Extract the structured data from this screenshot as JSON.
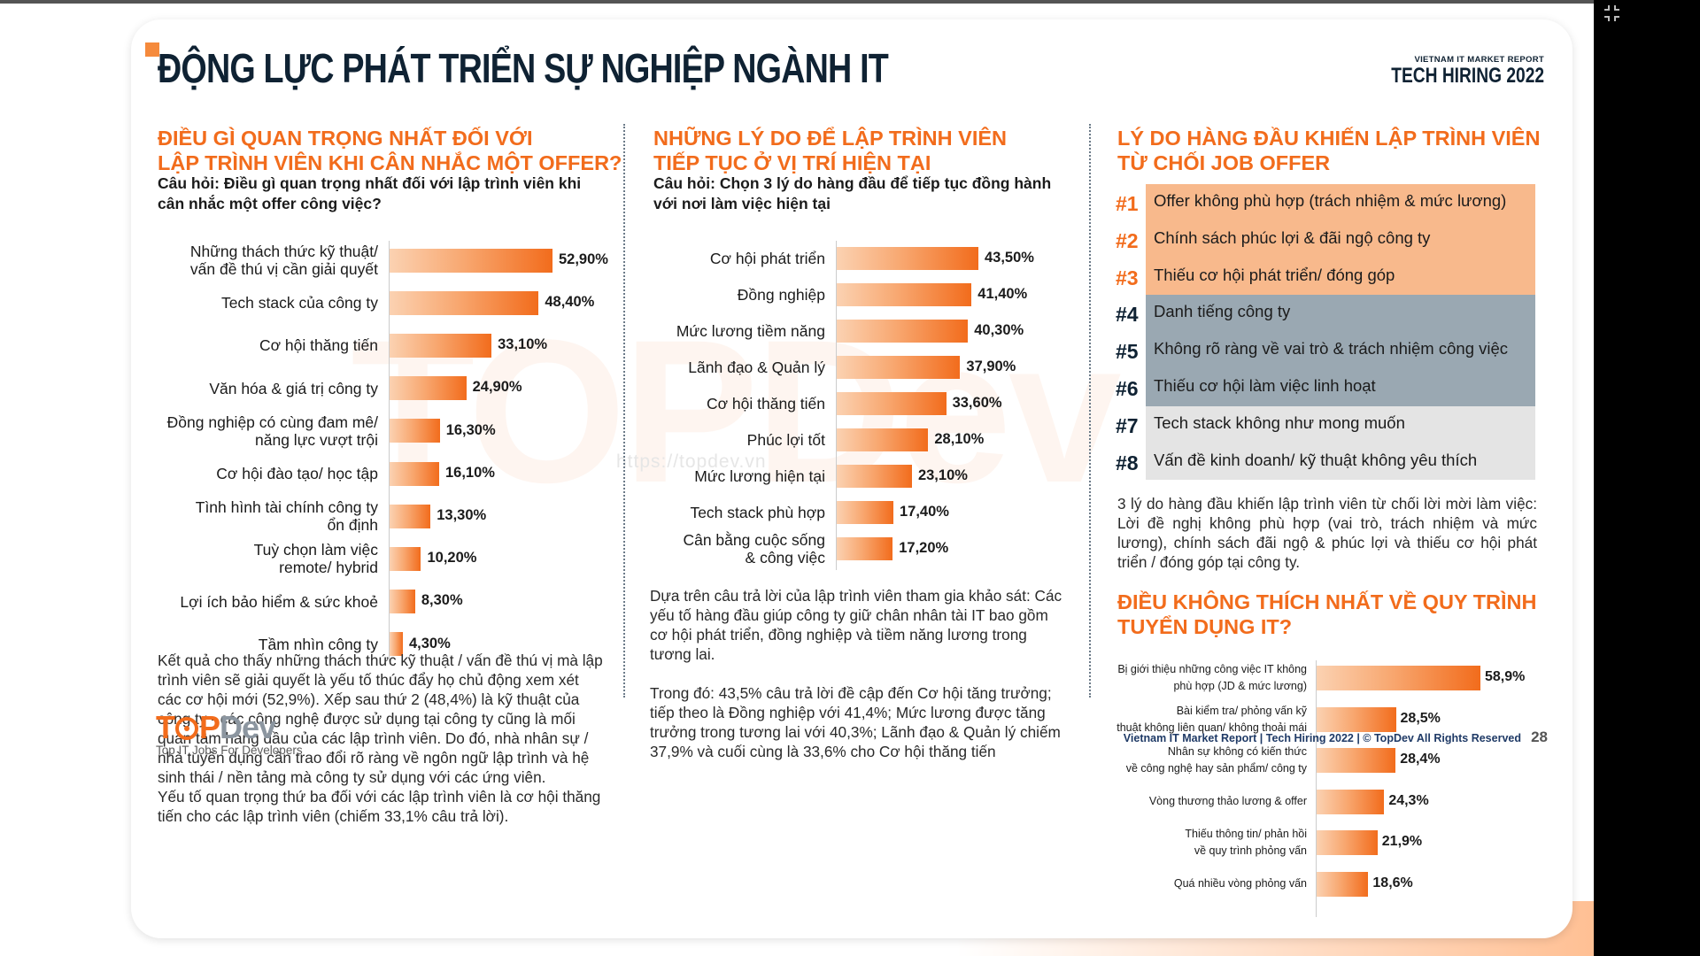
{
  "header": {
    "title": "ĐỘNG LỰC PHÁT TRIỂN SỰ NGHIỆP NGÀNH IT",
    "brand_sub": "VIETNAM IT MARKET REPORT",
    "brand_main": "TECH HIRING 2022"
  },
  "section1": {
    "title_line1": "ĐIỀU GÌ QUAN TRỌNG NHẤT ĐỐI VỚI",
    "title_line2": "LẬP TRÌNH VIÊN KHI CÂN NHẮC MỘT OFFER?",
    "question": "Câu hỏi: Điều gì quan trọng nhất đối với lập trình viên khi cân nhắc một offer công việc?",
    "paragraph1": "Kết quả cho thấy những thách thức kỹ thuật / vấn đề thú vị mà lập trình viên sẽ giải quyết là yếu tố thúc đẩy họ chủ động xem xét các cơ hội mới (52,9%). Xếp sau thứ 2 (48,4%) là kỹ thuật của công ty - các công nghệ được sử dụng tại công ty cũng là mối quan tâm hàng đầu của các lập trình viên. Do đó, nhà nhân sự / nhà tuyển dụng cần trao đổi rõ ràng về ngôn ngữ lập trình và hệ sinh thái / nền tảng mà công ty sử dụng với các ứng viên.",
    "paragraph2": "Yếu tố quan trọng thứ ba đối với các lập trình viên là cơ hội thăng tiến cho các lập trình viên (chiếm 33,1% câu trả lời)."
  },
  "section2": {
    "title_line1": "NHỮNG LÝ DO ĐỂ LẬP TRÌNH VIÊN",
    "title_line2": "TIẾP TỤC Ở VỊ TRÍ HIỆN TẠI",
    "question": "Câu hỏi: Chọn 3 lý do hàng đầu để tiếp tục đồng hành với nơi làm việc hiện tại",
    "paragraph1": "Dựa trên câu trả lời của lập trình viên tham gia khảo sát: Các yếu tố hàng đầu giúp công ty giữ chân nhân tài IT bao gồm cơ hội phát triển, đồng nghiệp và tiềm năng lương trong tương lai.",
    "paragraph2": "Trong đó: 43,5% câu trả lời đề cập đến Cơ hội tăng trưởng; tiếp theo là Đồng nghiệp với 41,4%; Mức lương được tăng trưởng trong tương lai với 40,3%; Lãnh đạo & Quản lý chiếm 37,9% và cuối cùng là 33,6% cho Cơ hội thăng tiến"
  },
  "section3": {
    "title_line1": "LÝ DO HÀNG ĐẦU KHIẾN LẬP TRÌNH VIÊN",
    "title_line2": "TỪ CHỐI JOB OFFER",
    "ranks": [
      {
        "num": "#1",
        "text": "Offer không phù hợp (trách nhiệm & mức lương)"
      },
      {
        "num": "#2",
        "text": "Chính sách phúc lợi & đãi ngộ công ty"
      },
      {
        "num": "#3",
        "text": "Thiếu cơ hội phát triển/ đóng góp"
      },
      {
        "num": "#4",
        "text": "Danh tiếng công ty"
      },
      {
        "num": "#5",
        "text": "Không rõ ràng về vai trò & trách nhiệm công việc"
      },
      {
        "num": "#6",
        "text": "Thiếu cơ hội làm việc linh hoạt"
      },
      {
        "num": "#7",
        "text": "Tech stack không như mong muốn"
      },
      {
        "num": "#8",
        "text": "Vấn đề kinh doanh/ kỹ thuật không yêu thích"
      }
    ],
    "rank_colors": {
      "top": "#f26c1c",
      "mid": "#0f2233",
      "low": "#0f2233"
    },
    "paragraph": "3 lý do hàng đầu khiến lập trình viên từ chối lời mời làm việc: Lời đề nghị không phù hợp (vai trò, trách nhiệm và mức lương), chính sách đãi ngộ & phúc lợi và thiếu cơ hội phát triển / đóng góp tại công ty."
  },
  "section4": {
    "title_line1": "ĐIỀU KHÔNG THÍCH NHẤT VỀ QUY TRÌNH",
    "title_line2": "TUYỂN DỤNG IT?"
  },
  "footer": {
    "logo_t": "T",
    "logo_p": "P",
    "logo_dev": "Dev",
    "tagline": "Top IT Jobs For Developers",
    "credit": "Vietnam IT Market Report | Tech Hiring 2022 | © TopDev All Rights Reserved",
    "page_number": "28",
    "watermark_url": "https://topdev.vn"
  },
  "colors": {
    "accent": "#f26c1c",
    "navy": "#0f2233",
    "rank_peach": "#f8b98c",
    "rank_slate": "#9aa8b2",
    "rank_light": "#e4e4e4"
  },
  "chart_data": [
    {
      "type": "bar",
      "orientation": "horizontal",
      "title": "ĐIỀU GÌ QUAN TRỌNG NHẤT ĐỐI VỚI LẬP TRÌNH VIÊN KHI CÂN NHẮC MỘT OFFER?",
      "categories": [
        "Những thách thức kỹ thuật/\nvấn đề thú vị cần giải quyết",
        "Tech stack của công ty",
        "Cơ hội thăng tiến",
        "Văn hóa & giá trị công ty",
        "Đồng nghiệp có cùng đam mê/\nnăng lực vượt trội",
        "Cơ hội đào tạo/ học tập",
        "Tình hình tài chính công ty\nổn định",
        "Tuỳ chọn làm việc\nremote/ hybrid",
        "Lợi ích bảo hiểm & sức khoẻ",
        "Tầm nhìn công ty"
      ],
      "values": [
        52.9,
        48.4,
        33.1,
        24.9,
        16.3,
        16.1,
        13.3,
        10.2,
        8.3,
        4.3
      ],
      "value_labels": [
        "52,90%",
        "48,40%",
        "33,10%",
        "24,90%",
        "16,30%",
        "16,10%",
        "13,30%",
        "10,20%",
        "8,30%",
        "4,30%"
      ],
      "unit": "%"
    },
    {
      "type": "bar",
      "orientation": "horizontal",
      "title": "NHỮNG LÝ DO ĐỂ LẬP TRÌNH VIÊN TIẾP TỤC Ở VỊ TRÍ HIỆN TẠI",
      "categories": [
        "Cơ hội phát triển",
        "Đồng nghiệp",
        "Mức lương tiềm năng",
        "Lãnh đạo & Quản lý",
        "Cơ hội thăng tiến",
        "Phúc lợi tốt",
        "Mức lương hiện tại",
        "Tech stack phù hợp",
        "Cân bằng cuộc sống\n& công việc"
      ],
      "values": [
        43.5,
        41.4,
        40.3,
        37.9,
        33.6,
        28.1,
        23.1,
        17.4,
        17.2
      ],
      "value_labels": [
        "43,50%",
        "41,40%",
        "40,30%",
        "37,90%",
        "33,60%",
        "28,10%",
        "23,10%",
        "17,40%",
        "17,20%"
      ],
      "unit": "%"
    },
    {
      "type": "bar",
      "orientation": "horizontal",
      "title": "ĐIỀU KHÔNG THÍCH NHẤT VỀ QUY TRÌNH TUYỂN DỤNG IT?",
      "categories": [
        "Bị giới thiệu những công việc IT không\nphù hợp (JD & mức lương)",
        "Bài kiểm tra/ phỏng vấn kỹ\nthuật không liên quan/ không thoải mái",
        "Nhân sự không có kiến thức\nvề công nghệ hay sản phẩm/ công ty",
        "Vòng thương thảo lương & offer",
        "Thiếu thông tin/ phản hồi\nvề quy trình phỏng vấn",
        "Quá nhiều vòng phỏng vấn"
      ],
      "values": [
        58.9,
        28.5,
        28.4,
        24.3,
        21.9,
        18.6
      ],
      "value_labels": [
        "58,9%",
        "28,5%",
        "28,4%",
        "24,3%",
        "21,9%",
        "18,6%"
      ],
      "unit": "%"
    }
  ]
}
